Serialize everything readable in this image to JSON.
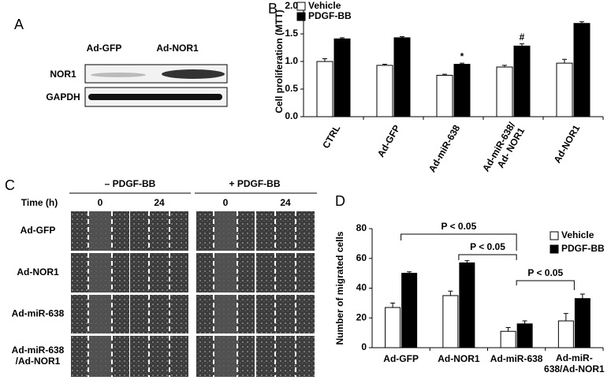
{
  "panel_labels": [
    "A",
    "B",
    "C",
    "D"
  ],
  "blot": {
    "columns": [
      "Ad-GFP",
      "Ad-NOR1"
    ],
    "rows": [
      "NOR1",
      "GAPDH"
    ]
  },
  "migration": {
    "conditions": [
      "–  PDGF-BB",
      "+  PDGF-BB"
    ],
    "time_label": "Time (h)",
    "times": [
      0,
      24,
      0,
      24
    ],
    "rows": [
      "Ad-GFP",
      "Ad-NOR1",
      "Ad-miR-638",
      "Ad-miR-638\n/Ad-NOR1"
    ]
  },
  "chart_data": [
    {
      "type": "bar",
      "y_label": "Cell proliferation (MTT)",
      "categories": [
        "CTRL",
        "Ad-GFP",
        "Ad-miR-638",
        "Ad-miR-638/\nAd- NOR1",
        "Ad-NOR1"
      ],
      "series": [
        {
          "name": "Vehicle",
          "color": "#ffffff",
          "values": [
            1.0,
            0.93,
            0.75,
            0.9,
            0.97
          ],
          "errors": [
            0.05,
            0.02,
            0.02,
            0.03,
            0.07
          ]
        },
        {
          "name": "PDGF-BB",
          "color": "#000000",
          "values": [
            1.41,
            1.43,
            0.95,
            1.28,
            1.69
          ],
          "errors": [
            0.02,
            0.02,
            0.02,
            0.04,
            0.03
          ]
        }
      ],
      "ylim": [
        0,
        2
      ],
      "yticks": [
        {
          "value": 0,
          "label": "0.0"
        },
        {
          "value": 0.5,
          "label": "0.5"
        },
        {
          "value": 1,
          "label": "1.0"
        },
        {
          "value": 1.5,
          "label": "1.5"
        },
        {
          "value": 2,
          "label": "2.0"
        }
      ],
      "annotations": [
        "*",
        "#"
      ]
    },
    {
      "type": "bar",
      "y_label": "Number of migrated cells",
      "categories": [
        "Ad-GFP",
        "Ad-NOR1",
        "Ad-miR-638",
        "Ad-miR-\n638/Ad-NOR1"
      ],
      "series": [
        {
          "name": "Vehicle",
          "color": "#ffffff",
          "values": [
            27,
            35,
            11,
            18
          ],
          "errors": [
            3,
            3,
            2.5,
            5
          ]
        },
        {
          "name": "PDGF-BB",
          "color": "#000000",
          "values": [
            50,
            57,
            16,
            33
          ],
          "errors": [
            1,
            1.5,
            2,
            3
          ]
        }
      ],
      "ylim": [
        0,
        80
      ],
      "yticks": [
        0,
        20,
        40,
        60,
        80
      ],
      "annotations": [
        "P < 0.05",
        "P < 0.05",
        "P < 0.05"
      ]
    }
  ]
}
